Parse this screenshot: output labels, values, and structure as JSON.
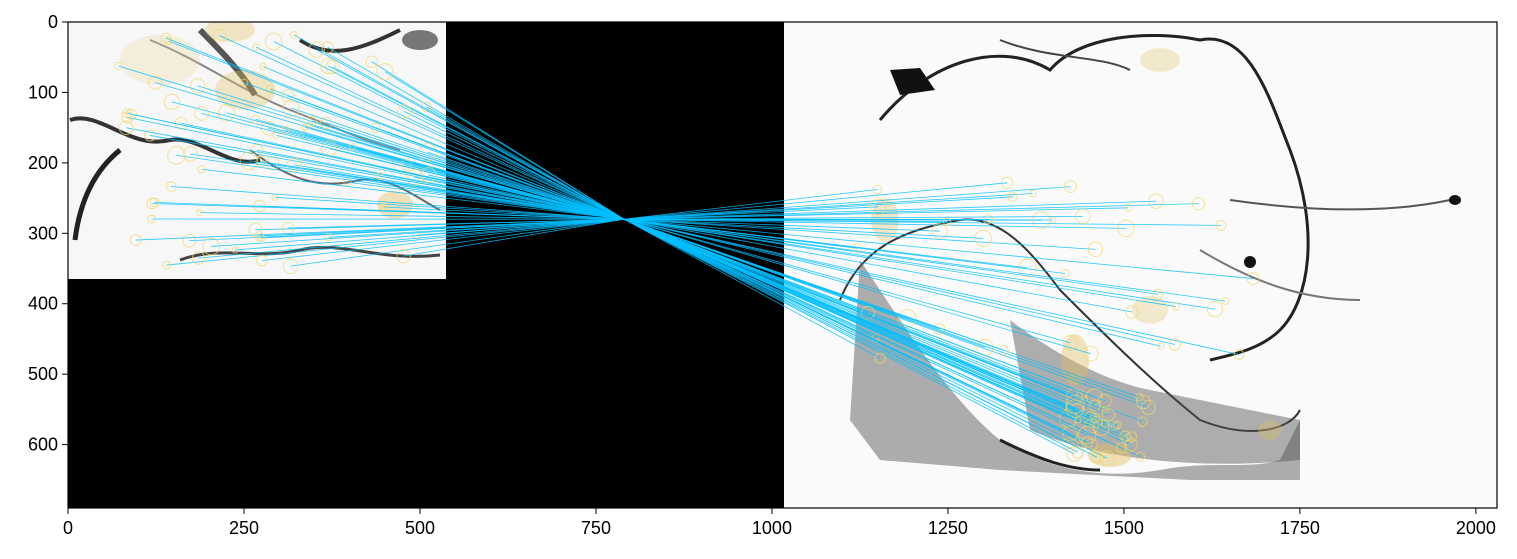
{
  "figure": {
    "x_axis": {
      "ticks": [
        "0",
        "250",
        "500",
        "750",
        "1000",
        "1250",
        "1500",
        "1750",
        "2000"
      ],
      "range": [
        0,
        2030
      ]
    },
    "y_axis": {
      "ticks": [
        "0",
        "100",
        "200",
        "300",
        "400",
        "500",
        "600"
      ],
      "range": [
        690,
        0
      ],
      "inverted": true
    },
    "left_image": {
      "x_range": [
        0,
        537
      ],
      "y_range": [
        0,
        365
      ],
      "content": "grayscale tissue section with yellow keypoint circles"
    },
    "right_image": {
      "x_range": [
        1018,
        2030
      ],
      "y_range": [
        0,
        690
      ],
      "content": "grayscale tissue section with yellow keypoint circles"
    },
    "background": "black",
    "match_lines": {
      "color": "#00BFFF",
      "converge_at": [
        790,
        280
      ],
      "count_estimate": 80
    },
    "keypoint_color": "#F0D76A",
    "grid": false
  }
}
